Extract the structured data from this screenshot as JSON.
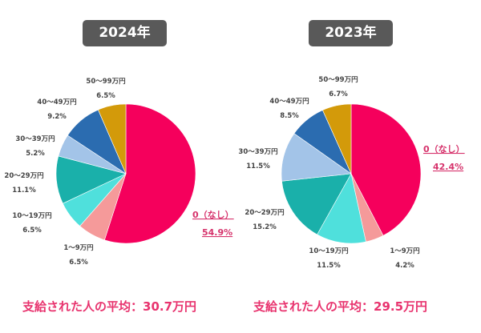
{
  "chart_data": [
    {
      "type": "pie",
      "title": "2024年",
      "categories": [
        "0（なし）",
        "1〜9万円",
        "10〜19万円",
        "20〜29万円",
        "30〜39万円",
        "40〜49万円",
        "50〜99万円"
      ],
      "values": [
        54.9,
        6.5,
        6.5,
        11.1,
        5.2,
        9.2,
        6.5
      ],
      "value_labels": [
        "54.9%",
        "6.5%",
        "6.5%",
        "11.1%",
        "5.2%",
        "9.2%",
        "6.5%"
      ],
      "footer": "支給された人の平均：30.7万円"
    },
    {
      "type": "pie",
      "title": "2023年",
      "categories": [
        "0（なし）",
        "1〜9万円",
        "10〜19万円",
        "20〜29万円",
        "30〜39万円",
        "40〜49万円",
        "50〜99万円"
      ],
      "values": [
        42.4,
        4.2,
        11.5,
        15.2,
        11.5,
        8.5,
        6.7
      ],
      "value_labels": [
        "42.4%",
        "4.2%",
        "11.5%",
        "15.2%",
        "11.5%",
        "8.5%",
        "6.7%"
      ],
      "footer": "支給された人の平均：29.5万円"
    }
  ],
  "colors": [
    "#f5005c",
    "#f59a9a",
    "#4fe0dc",
    "#1ab0aa",
    "#a3c4e8",
    "#2b6cb0",
    "#d39a0a"
  ],
  "title_box_color": "#595959",
  "accent_text_color": "#e8336e"
}
